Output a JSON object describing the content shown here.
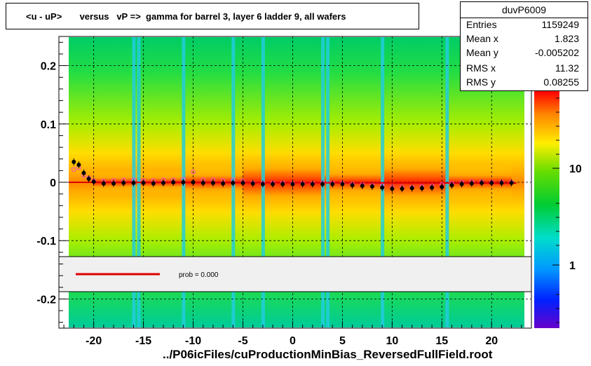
{
  "title": "<u - uP>       versus   vP =>  gamma for barrel 3, layer 6 ladder 9, all wafers",
  "stats": {
    "name": "duvP6009",
    "rows": [
      {
        "label": "Entries",
        "value": "1159249"
      },
      {
        "label": "Mean x",
        "value": "1.823"
      },
      {
        "label": "Mean y",
        "value": "-0.005202"
      },
      {
        "label": "RMS x",
        "value": "11.32"
      },
      {
        "label": "RMS y",
        "value": "0.08255"
      }
    ]
  },
  "fit_legend": {
    "text": "prob = 0.000",
    "color": "#dd0000"
  },
  "filename": "../P06icFiles/cuProductionMinBias_ReversedFullField.root",
  "colors": {
    "profile_black": "#000000",
    "profile_open": "#ff44cc",
    "fit_line": "#dd0000"
  },
  "chart_data": {
    "type": "heatmap",
    "title": "<u - uP>       versus   vP =>  gamma for barrel 3, layer 6 ladder 9, all wafers",
    "xlim": [
      -23.5,
      24
    ],
    "ylim": [
      -0.25,
      0.25
    ],
    "x_ticks": [
      -20,
      -15,
      -10,
      -5,
      0,
      5,
      10,
      15,
      20
    ],
    "x_tick_labels": [
      "-20",
      "-15",
      "-10",
      "-5",
      "0",
      "5",
      "10",
      "15",
      "20"
    ],
    "y_ticks": [
      -0.2,
      -0.1,
      0,
      0.1,
      0.2
    ],
    "y_tick_labels": [
      "-0.2",
      "-0.1",
      "0",
      "0.1",
      "0.2"
    ],
    "z_scale": "log",
    "z_tick_labels": [
      "1",
      "10"
    ],
    "grid": true,
    "cyan_stripes_x": [
      -16,
      -15.5,
      -11,
      -6,
      -3,
      3,
      3.5,
      9,
      15.5
    ],
    "profile_black": {
      "x": [
        -22,
        -21.5,
        -21,
        -20.5,
        -20,
        -19,
        -18,
        -17,
        -16,
        -15,
        -14,
        -13,
        -12,
        -11,
        -10,
        -9,
        -8,
        -7,
        -6,
        -5,
        -4,
        -3,
        -2,
        -1,
        0,
        1,
        2,
        3,
        4,
        5,
        6,
        7,
        8,
        9,
        10,
        11,
        12,
        13,
        14,
        15,
        16,
        17,
        18,
        19,
        20,
        21,
        22
      ],
      "y": [
        0.035,
        0.03,
        0.016,
        0.006,
        0.001,
        -0.002,
        -0.002,
        -0.001,
        -0.001,
        -0.001,
        -0.002,
        -0.001,
        0.0,
        0.0,
        0.0,
        -0.001,
        -0.001,
        -0.002,
        -0.001,
        -0.001,
        -0.002,
        -0.003,
        -0.003,
        -0.003,
        -0.003,
        -0.003,
        -0.003,
        -0.003,
        -0.003,
        -0.003,
        -0.005,
        -0.006,
        -0.007,
        -0.009,
        -0.011,
        -0.011,
        -0.01,
        -0.01,
        -0.009,
        -0.008,
        -0.005,
        -0.003,
        -0.002,
        -0.001,
        -0.001,
        -0.001,
        -0.001
      ]
    },
    "profile_open": {
      "x": [
        -22,
        -21.5,
        -21,
        -20.5,
        -20,
        -19,
        -18,
        -17,
        -16,
        -15,
        -14,
        -13,
        -12,
        -11,
        -10,
        -9,
        -8,
        -7,
        -6,
        -5,
        -4,
        -3,
        -2,
        -1,
        0,
        1,
        2,
        3,
        4,
        5,
        6,
        7,
        8,
        9,
        10,
        11,
        12,
        13,
        14,
        15,
        16,
        17,
        18,
        19,
        20,
        21,
        22
      ],
      "y": [
        0.022,
        0.025,
        0.012,
        0.007,
        0.003,
        0.002,
        0.003,
        0.004,
        0.004,
        0.003,
        0.003,
        0.004,
        0.004,
        0.005,
        0.018,
        0.004,
        0.004,
        0.003,
        0.004,
        0.002,
        -0.001,
        -0.002,
        -0.001,
        -0.001,
        -0.002,
        -0.002,
        -0.002,
        -0.001,
        -0.001,
        -0.002,
        -0.003,
        -0.004,
        -0.005,
        -0.006,
        -0.008,
        -0.008,
        -0.008,
        -0.007,
        -0.006,
        -0.004,
        -0.002,
        0.0,
        0.001,
        0.001,
        0.0,
        0.0,
        0.0
      ]
    },
    "fit_line": {
      "x": [
        -22.5,
        22.5
      ],
      "y": [
        0.0,
        -0.0015
      ]
    }
  }
}
